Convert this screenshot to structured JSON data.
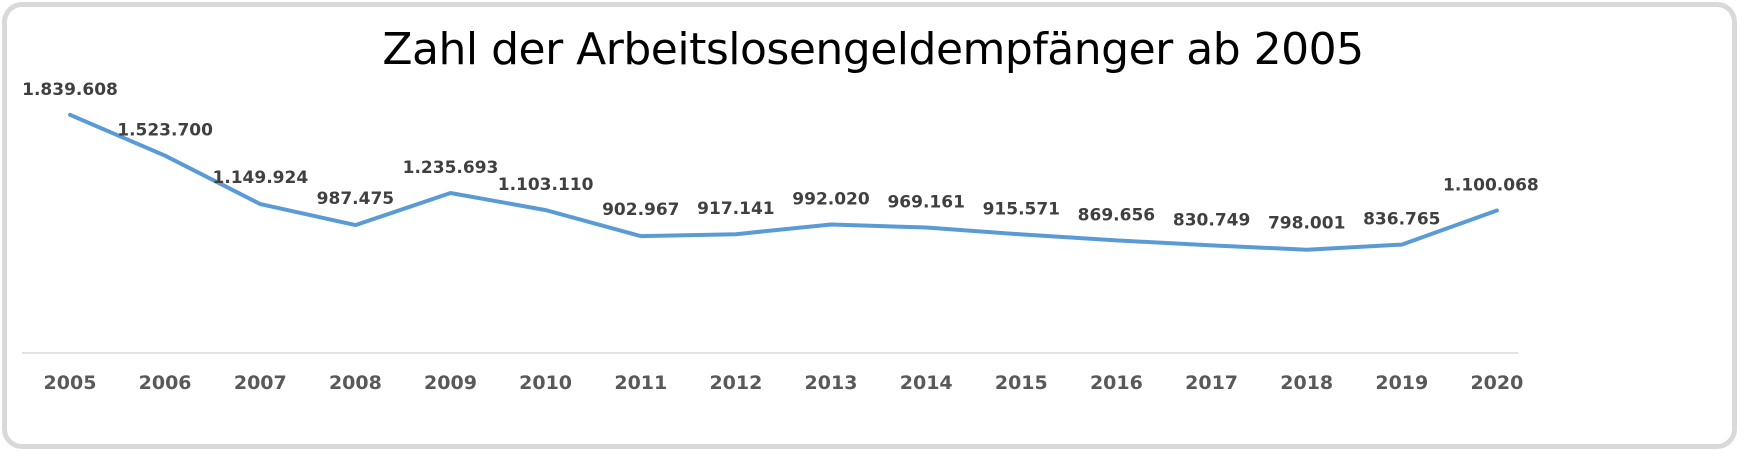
{
  "chart_data": {
    "type": "line",
    "title": "Zahl der Arbeitslosengeldempfänger ab 2005",
    "xlabel": "",
    "ylabel": "",
    "ylim": [
      0,
      2000000
    ],
    "grid": false,
    "legend": null,
    "categories": [
      "2005",
      "2006",
      "2007",
      "2008",
      "2009",
      "2010",
      "2011",
      "2012",
      "2013",
      "2014",
      "2015",
      "2016",
      "2017",
      "2018",
      "2019",
      "2020"
    ],
    "series": [
      {
        "name": "Arbeitslosengeldempfänger",
        "color": "#5b9bd5",
        "values": [
          1839608,
          1523700,
          1149924,
          987475,
          1235693,
          1103110,
          902967,
          917141,
          992020,
          969161,
          915571,
          869656,
          830749,
          798001,
          836765,
          1100068
        ],
        "labels": [
          "1.839.608",
          "1.523.700",
          "1.149.924",
          "987.475",
          "1.235.693",
          "1.103.110",
          "902.967",
          "917.141",
          "992.020",
          "969.161",
          "915.571",
          "869.656",
          "830.749",
          "798.001",
          "836.765",
          "1.100.068"
        ]
      }
    ]
  },
  "colors": {
    "line": "#5b9bd5",
    "axis": "#d9d9d9",
    "frame": "#d9d9d9",
    "data_label": "#404040",
    "tick_label": "#595959",
    "title": "#000000"
  }
}
